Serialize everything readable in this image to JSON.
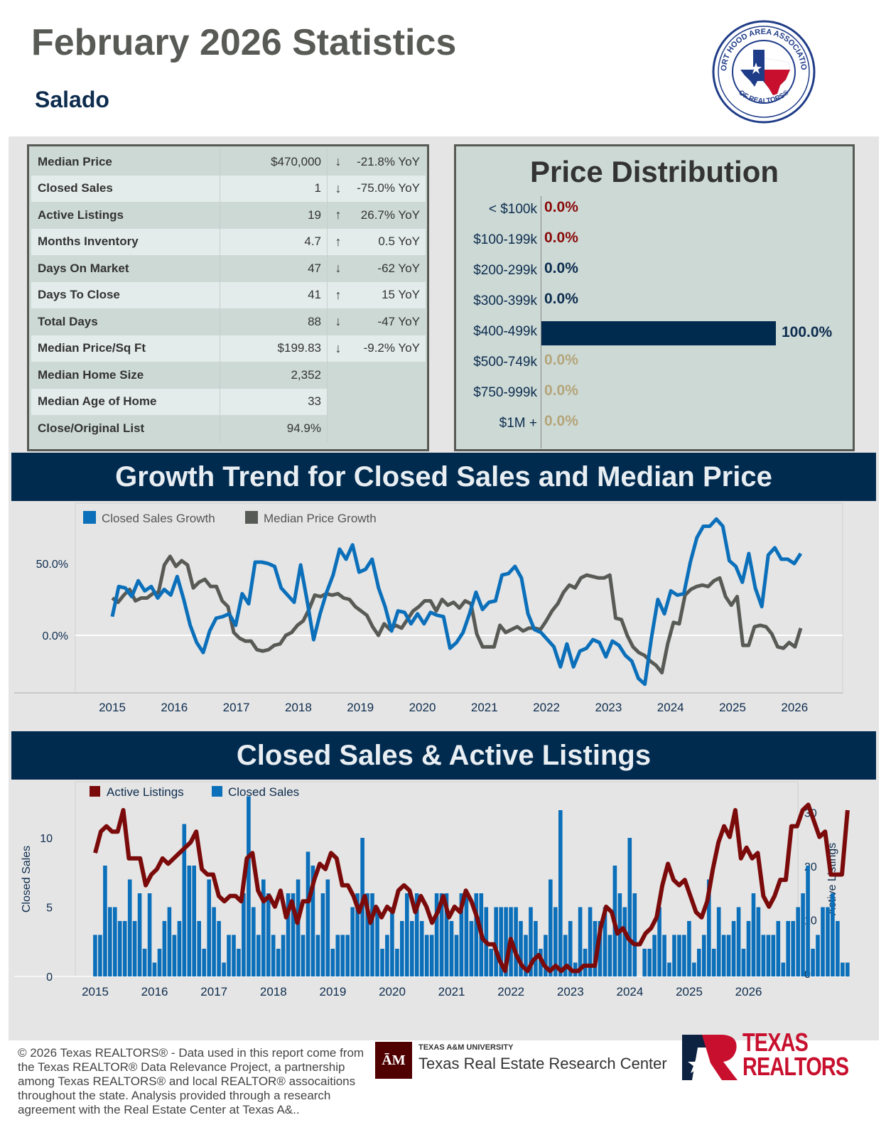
{
  "header": {
    "title": "February 2026 Statistics",
    "location": "Salado"
  },
  "logo": {
    "org_top": "FORT HOOD AREA ASSOCIATION",
    "org_bottom": "OF REALTORS®"
  },
  "stats": [
    {
      "label": "Median Price",
      "value": "$470,000",
      "trend": "down",
      "change": "-21.8% YoY"
    },
    {
      "label": "Closed Sales",
      "value": "1",
      "trend": "down",
      "change": "-75.0% YoY"
    },
    {
      "label": "Active Listings",
      "value": "19",
      "trend": "up",
      "change": "26.7% YoY"
    },
    {
      "label": "Months Inventory",
      "value": "4.7",
      "trend": "up",
      "change": "0.5 YoY"
    },
    {
      "label": "Days On Market",
      "value": "47",
      "trend": "down",
      "change": "-62 YoY"
    },
    {
      "label": "Days To Close",
      "value": "41",
      "trend": "up",
      "change": "15 YoY"
    },
    {
      "label": "Total Days",
      "value": "88",
      "trend": "down",
      "change": "-47 YoY"
    },
    {
      "label": "Median Price/Sq Ft",
      "value": "$199.83",
      "trend": "down",
      "change": "-9.2% YoY"
    },
    {
      "label": "Median Home Size",
      "value": "2,352",
      "trend": "",
      "change": ""
    },
    {
      "label": "Median Age of Home",
      "value": "33",
      "trend": "",
      "change": ""
    },
    {
      "label": "Close/Original List",
      "value": "94.9%",
      "trend": "",
      "change": ""
    }
  ],
  "colors": {
    "navy": "#002b4f",
    "blue": "#0b6fba",
    "gray": "#585a55",
    "maroon": "#7b0a0a",
    "tan": "#b5a57a",
    "up": "#3d9a3d",
    "down": "#c8102e"
  },
  "price_distribution": {
    "title": "Price Distribution",
    "rows": [
      {
        "label": "< $100k",
        "pct": 0.0,
        "text": "0.0%",
        "color": "#8b0a0a"
      },
      {
        "label": "$100-199k",
        "pct": 0.0,
        "text": "0.0%",
        "color": "#8b0a0a"
      },
      {
        "label": "$200-299k",
        "pct": 0.0,
        "text": "0.0%",
        "color": "#0d2c4e"
      },
      {
        "label": "$300-399k",
        "pct": 0.0,
        "text": "0.0%",
        "color": "#0d2c4e"
      },
      {
        "label": "$400-499k",
        "pct": 100.0,
        "text": "100.0%",
        "color": "#0d2c4e"
      },
      {
        "label": "$500-749k",
        "pct": 0.0,
        "text": "0.0%",
        "color": "#b5a57a"
      },
      {
        "label": "$750-999k",
        "pct": 0.0,
        "text": "0.0%",
        "color": "#b5a57a"
      },
      {
        "label": "$1M +",
        "pct": 0.0,
        "text": "0.0%",
        "color": "#b5a57a"
      }
    ]
  },
  "sections": {
    "growth_title": "Growth Trend for Closed Sales and Median Price",
    "sales_title": "Closed Sales & Active Listings"
  },
  "chart_data": [
    {
      "type": "line",
      "title": "Growth Trend for Closed Sales and Median Price",
      "xlabel": "",
      "ylabel": "",
      "x_ticks": [
        "2015",
        "2016",
        "2017",
        "2018",
        "2019",
        "2020",
        "2021",
        "2022",
        "2023",
        "2024",
        "2025",
        "2026"
      ],
      "y_ticks": [
        "0.0%",
        "50.0%"
      ],
      "ylim": [
        -40,
        80
      ],
      "grid": true,
      "legend": "top-left",
      "x_start": 2015.0,
      "x_step_months": 2,
      "series": [
        {
          "name": "Closed Sales Growth",
          "color": "#0b6fba",
          "values": [
            13,
            34,
            33,
            27,
            38,
            31,
            34,
            26,
            32,
            28,
            41,
            25,
            7,
            -5,
            -12,
            3,
            12,
            13,
            15,
            7,
            29,
            22,
            51,
            51,
            50,
            48,
            33,
            28,
            23,
            49,
            24,
            -3,
            15,
            30,
            42,
            60,
            53,
            63,
            44,
            46,
            53,
            33,
            20,
            3,
            17,
            16,
            8,
            15,
            8,
            16,
            14,
            13,
            -9,
            -5,
            2,
            15,
            30,
            18,
            23,
            24,
            42,
            43,
            48,
            40,
            15,
            4,
            2,
            -3,
            -8,
            -22,
            -6,
            -22,
            -11,
            -9,
            -3,
            -5,
            -15,
            -4,
            -7,
            -14,
            -18,
            -30,
            -34,
            -2,
            25,
            15,
            31,
            28,
            29,
            51,
            68,
            76,
            76,
            81,
            76,
            52,
            48,
            37,
            57,
            33,
            20,
            56,
            61,
            53,
            53,
            50,
            57
          ]
        },
        {
          "name": "Median Price Growth",
          "color": "#585a55",
          "values": [
            26,
            23,
            28,
            32,
            24,
            26,
            26,
            29,
            30,
            49,
            55,
            48,
            52,
            49,
            33,
            37,
            39,
            34,
            34,
            24,
            20,
            2,
            -2,
            -4,
            -4,
            -10,
            -11,
            -10,
            -7,
            -6,
            0,
            2,
            7,
            10,
            18,
            28,
            27,
            29,
            28,
            29,
            26,
            25,
            20,
            17,
            14,
            6,
            0,
            8,
            4,
            7,
            5,
            11,
            17,
            20,
            24,
            24,
            17,
            25,
            21,
            23,
            19,
            24,
            22,
            1,
            -8,
            -8,
            -8,
            7,
            2,
            4,
            6,
            3,
            5,
            5,
            4,
            10,
            17,
            22,
            30,
            35,
            33,
            40,
            42,
            41,
            40,
            40,
            42,
            12,
            11,
            0,
            -8,
            -12,
            -14,
            -18,
            -21,
            -26,
            -6,
            9,
            8,
            28,
            32,
            34,
            35,
            34,
            38,
            40,
            27,
            21,
            27,
            -7,
            -7,
            6,
            7,
            6,
            1,
            -8,
            -9,
            -5,
            -8,
            5
          ]
        }
      ]
    },
    {
      "type": "bar",
      "title": "Closed Sales & Active Listings",
      "ylabel": "Closed Sales",
      "y2label": "Active Listings",
      "x_ticks": [
        "2015",
        "2016",
        "2017",
        "2018",
        "2019",
        "2020",
        "2021",
        "2022",
        "2023",
        "2024",
        "2025",
        "2026"
      ],
      "y_ticks": [
        0,
        5,
        10
      ],
      "y2_ticks": [
        0,
        10,
        20,
        30
      ],
      "ylim": [
        0,
        13
      ],
      "y2lim": [
        0,
        34
      ],
      "legend": "top-left",
      "x_start": 2015.0,
      "series": [
        {
          "name": "Closed Sales",
          "color": "#0b6fba",
          "kind": "bar",
          "values": [
            3,
            3,
            8,
            5,
            5,
            4,
            4,
            7,
            4,
            6,
            2,
            6,
            1,
            2,
            4,
            5,
            3,
            4,
            11,
            8,
            8,
            4,
            2,
            7,
            5,
            4,
            1,
            3,
            3,
            2,
            6,
            13,
            5,
            3,
            7,
            6,
            3,
            2,
            3,
            6,
            6,
            7,
            3,
            9,
            8,
            3,
            6,
            7,
            2,
            3,
            3,
            3,
            5,
            6,
            10,
            6,
            6,
            5,
            2,
            3,
            5,
            2,
            4,
            6,
            4,
            6,
            4,
            3,
            3,
            6,
            6,
            6,
            4,
            3,
            6,
            6,
            4,
            6,
            6,
            5,
            2,
            5,
            5,
            5,
            5,
            5,
            4,
            3,
            5,
            4,
            2,
            3,
            7,
            5,
            12,
            3,
            4,
            1,
            5,
            2,
            5,
            4,
            4,
            5,
            3,
            8,
            6,
            5,
            10,
            6,
            0,
            2,
            2,
            3,
            5,
            3,
            1,
            3,
            3,
            3,
            4,
            1,
            2,
            3,
            7,
            2,
            5,
            3,
            3,
            4,
            5,
            2,
            4,
            6,
            5,
            3,
            3,
            3,
            4,
            1,
            4,
            4,
            5,
            6,
            8,
            2,
            3,
            5,
            5,
            6,
            4,
            1,
            1
          ]
        },
        {
          "name": "Active Listings",
          "color": "#7b0a0a",
          "kind": "line",
          "values": [
            23,
            27,
            28,
            27,
            27,
            31,
            22,
            22,
            22,
            17,
            19,
            20,
            22,
            21,
            22,
            23,
            24,
            25,
            27,
            20,
            19,
            19,
            15,
            14,
            15,
            15,
            14,
            22,
            23,
            16,
            14,
            15,
            13,
            16,
            11,
            14,
            10,
            14,
            14,
            18,
            21,
            20,
            23,
            22,
            17,
            17,
            15,
            12,
            15,
            10,
            13,
            11,
            13,
            12,
            16,
            17,
            16,
            12,
            15,
            13,
            10,
            12,
            15,
            11,
            13,
            12,
            16,
            14,
            11,
            7,
            6,
            6,
            3,
            1,
            7,
            4,
            2,
            1,
            3,
            4,
            2,
            1,
            2,
            1,
            2,
            1,
            1,
            2,
            2,
            2,
            9,
            13,
            12,
            8,
            9,
            7,
            6,
            6,
            8,
            9,
            11,
            17,
            21,
            18,
            17,
            18,
            15,
            12,
            11,
            14,
            20,
            25,
            28,
            26,
            31,
            22,
            24,
            22,
            23,
            15,
            13,
            15,
            18,
            18,
            28,
            28,
            31,
            32,
            29,
            26,
            27,
            19,
            19,
            19,
            31
          ]
        }
      ]
    }
  ],
  "footer": {
    "disclaimer": "© 2026 Texas REALTORS® - Data used in this report come from the Texas REALTOR® Data Relevance Project, a partnership among Texas REALTORS® and local REALTOR® assocaitions throughout the state. Analysis provided through a research agreement with the Real Estate Center at Texas A&..",
    "tamu_small": "TEXAS A&M UNIVERSITY",
    "tamu_large": "Texas Real Estate Research Center",
    "tr_line1": "TEXAS",
    "tr_line2": "REALTORS"
  }
}
